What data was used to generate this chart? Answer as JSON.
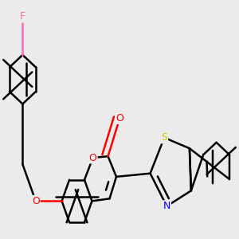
{
  "bg_color": "#ebebeb",
  "bond_color": "#000000",
  "bond_width": 1.8,
  "atom_colors": {
    "O": "#ff0000",
    "N": "#0000ff",
    "S": "#cccc00",
    "F": "#ff69b4",
    "C": "#000000"
  },
  "font_size": 9,
  "figsize": [
    3.0,
    3.0
  ],
  "dpi": 100
}
